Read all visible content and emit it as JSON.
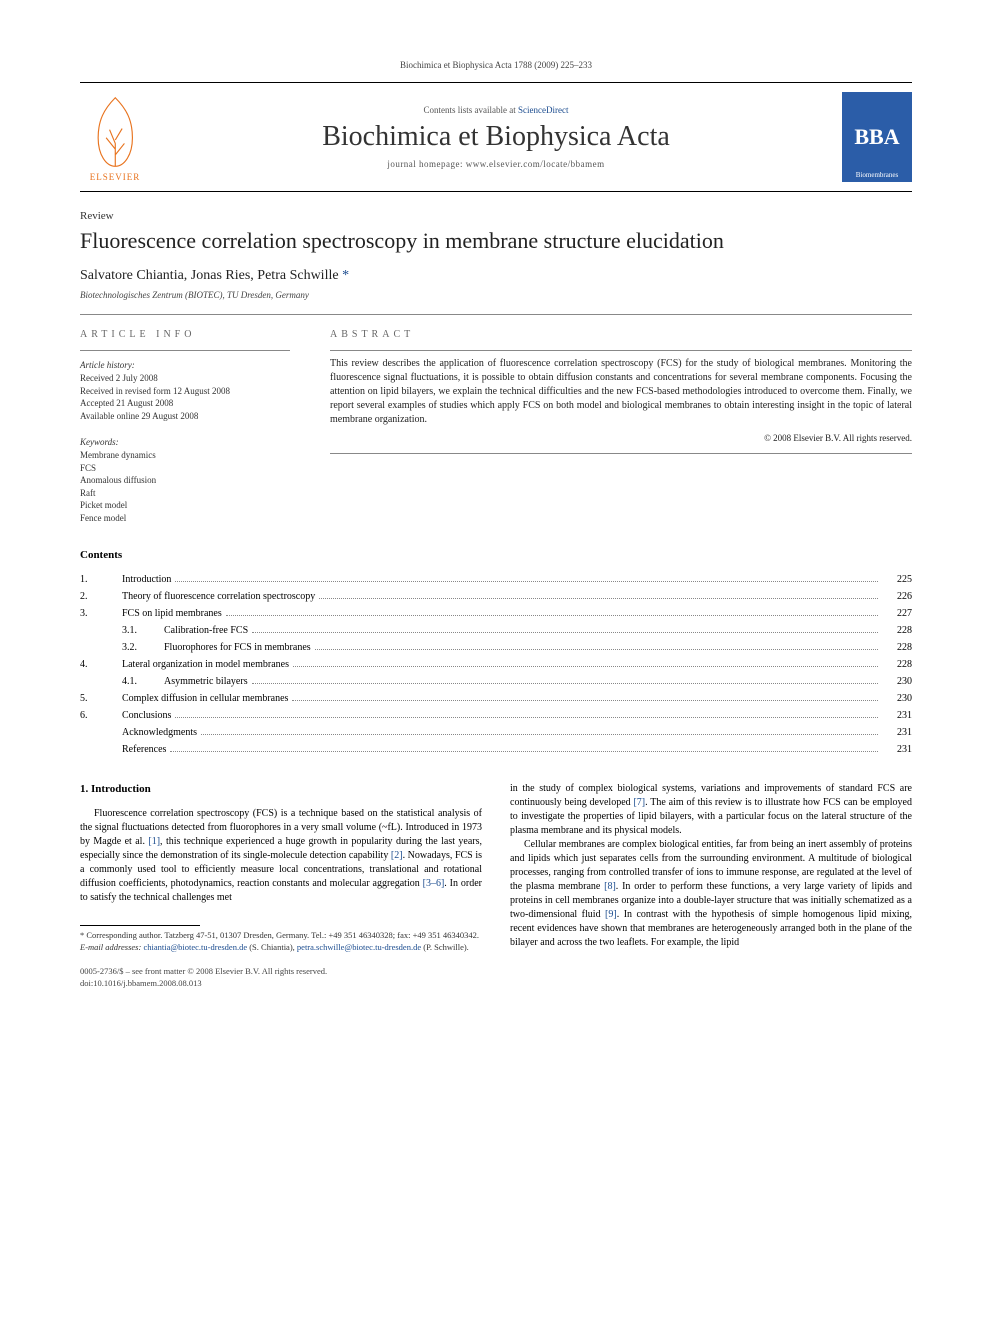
{
  "running_head": "Biochimica et Biophysica Acta 1788 (2009) 225–233",
  "masthead": {
    "elsevier_label": "ELSEVIER",
    "contents_prefix": "Contents lists available at ",
    "contents_link": "ScienceDirect",
    "journal_title": "Biochimica et Biophysica Acta",
    "homepage_prefix": "journal homepage: ",
    "homepage_url": "www.elsevier.com/locate/bbamem",
    "bba_label": "BBA",
    "bba_sublabel": "Biomembranes"
  },
  "article": {
    "type": "Review",
    "title": "Fluorescence correlation spectroscopy in membrane structure elucidation",
    "authors": "Salvatore Chiantia, Jonas Ries, Petra Schwille ",
    "corr_mark": "*",
    "affiliation": "Biotechnologisches Zentrum (BIOTEC), TU Dresden, Germany"
  },
  "info": {
    "heading": "ARTICLE INFO",
    "history_head": "Article history:",
    "history": [
      "Received 2 July 2008",
      "Received in revised form 12 August 2008",
      "Accepted 21 August 2008",
      "Available online 29 August 2008"
    ],
    "keywords_head": "Keywords:",
    "keywords": [
      "Membrane dynamics",
      "FCS",
      "Anomalous diffusion",
      "Raft",
      "Picket model",
      "Fence model"
    ]
  },
  "abstract": {
    "heading": "ABSTRACT",
    "text": "This review describes the application of fluorescence correlation spectroscopy (FCS) for the study of biological membranes. Monitoring the fluorescence signal fluctuations, it is possible to obtain diffusion constants and concentrations for several membrane components. Focusing the attention on lipid bilayers, we explain the technical difficulties and the new FCS-based methodologies introduced to overcome them. Finally, we report several examples of studies which apply FCS on both model and biological membranes to obtain interesting insight in the topic of lateral membrane organization.",
    "copyright": "© 2008 Elsevier B.V. All rights reserved."
  },
  "contents": {
    "heading": "Contents",
    "items": [
      {
        "num": "1.",
        "label": "Introduction",
        "page": "225",
        "indent": 0
      },
      {
        "num": "2.",
        "label": "Theory of fluorescence correlation spectroscopy",
        "page": "226",
        "indent": 0
      },
      {
        "num": "3.",
        "label": "FCS on lipid membranes",
        "page": "227",
        "indent": 0
      },
      {
        "num": "3.1.",
        "label": "Calibration-free FCS",
        "page": "228",
        "indent": 1
      },
      {
        "num": "3.2.",
        "label": "Fluorophores for FCS in membranes",
        "page": "228",
        "indent": 1
      },
      {
        "num": "4.",
        "label": "Lateral organization in model membranes",
        "page": "228",
        "indent": 0
      },
      {
        "num": "4.1.",
        "label": "Asymmetric bilayers",
        "page": "230",
        "indent": 1
      },
      {
        "num": "5.",
        "label": "Complex diffusion in cellular membranes",
        "page": "230",
        "indent": 0
      },
      {
        "num": "6.",
        "label": "Conclusions",
        "page": "231",
        "indent": 0
      },
      {
        "num": "",
        "label": "Acknowledgments",
        "page": "231",
        "indent": 0
      },
      {
        "num": "",
        "label": "References",
        "page": "231",
        "indent": 0
      }
    ]
  },
  "body": {
    "section_heading": "1. Introduction",
    "col1_p1a": "Fluorescence correlation spectroscopy (FCS) is a technique based on the statistical analysis of the signal fluctuations detected from fluorophores in a very small volume (~fL). Introduced in 1973 by Magde et al. ",
    "ref1": "[1]",
    "col1_p1b": ", this technique experienced a huge growth in popularity during the last years, especially since the demonstration of its single-molecule detection capability ",
    "ref2": "[2]",
    "col1_p1c": ". Nowadays, FCS is a commonly used tool to efficiently measure local concentrations, translational and rotational diffusion coefficients, photodynamics, reaction constants and molecular aggregation ",
    "ref3_6": "[3–6]",
    "col1_p1d": ". In order to satisfy the technical challenges met",
    "col2_p1a": "in the study of complex biological systems, variations and improvements of standard FCS are continuously being developed ",
    "ref7": "[7]",
    "col2_p1b": ". The aim of this review is to illustrate how FCS can be employed to investigate the properties of lipid bilayers, with a particular focus on the lateral structure of the plasma membrane and its physical models.",
    "col2_p2a": "Cellular membranes are complex biological entities, far from being an inert assembly of proteins and lipids which just separates cells from the surrounding environment. A multitude of biological processes, ranging from controlled transfer of ions to immune response, are regulated at the level of the plasma membrane ",
    "ref8": "[8]",
    "col2_p2b": ". In order to perform these functions, a very large variety of lipids and proteins in cell membranes organize into a double-layer structure that was initially schematized as a two-dimensional fluid ",
    "ref9": "[9]",
    "col2_p2c": ". In contrast with the hypothesis of simple homogenous lipid mixing, recent evidences have shown that membranes are heterogeneously arranged both in the plane of the bilayer and across the two leaflets. For example, the lipid"
  },
  "footnotes": {
    "corr": "* Corresponding author. Tatzberg 47-51, 01307 Dresden, Germany. Tel.: +49 351 46340328; fax: +49 351 46340342.",
    "email_label": "E-mail addresses: ",
    "email1": "chiantia@biotec.tu-dresden.de",
    "email1_who": " (S. Chiantia), ",
    "email2": "petra.schwille@biotec.tu-dresden.de",
    "email2_who": " (P. Schwille)."
  },
  "footer": {
    "line1": "0005-2736/$ – see front matter © 2008 Elsevier B.V. All rights reserved.",
    "line2": "doi:10.1016/j.bbamem.2008.08.013"
  },
  "colors": {
    "link": "#1a4b8e",
    "elsevier_orange": "#e8731e",
    "bba_blue": "#2b5da8",
    "text": "#000000",
    "muted": "#666666"
  }
}
